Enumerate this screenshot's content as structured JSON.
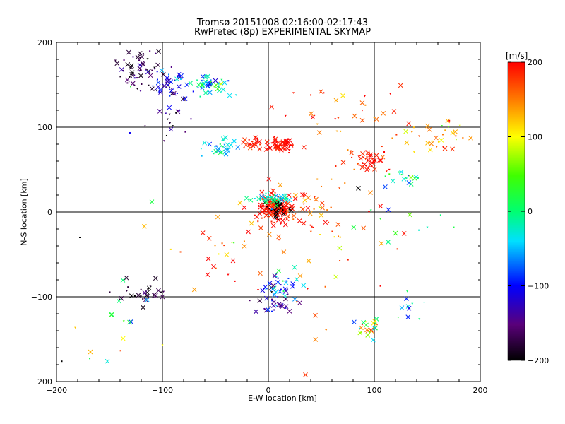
{
  "chart_data": {
    "type": "scatter",
    "title": "Tromsø 20151008 02:16:00-02:17:43",
    "subtitle": "RwPretec (8p) EXPERIMENTAL SKYMAP",
    "xlabel": "E-W location [km]",
    "ylabel": "N-S location [km]",
    "xlim": [
      -200,
      200
    ],
    "ylim": [
      -200,
      200
    ],
    "xticks": [
      -200,
      -100,
      0,
      100,
      200
    ],
    "yticks": [
      -200,
      -100,
      0,
      100,
      200
    ],
    "grid": true,
    "colorbar": {
      "unit": "[m/s]",
      "range": [
        -200,
        200
      ],
      "ticks": [
        200,
        100,
        0,
        -100,
        -200
      ],
      "colormap": "black-purple-blue-cyan-green-yellow-red"
    },
    "clusters": [
      {
        "x": -120,
        "y": 170,
        "spread_x": 18,
        "spread_y": 22,
        "velocity": -170,
        "vel_spread": 40,
        "n": 55
      },
      {
        "x": -95,
        "y": 150,
        "spread_x": 14,
        "spread_y": 12,
        "velocity": -120,
        "vel_spread": 60,
        "n": 40
      },
      {
        "x": -55,
        "y": 150,
        "spread_x": 15,
        "spread_y": 10,
        "velocity": -30,
        "vel_spread": 60,
        "n": 55
      },
      {
        "x": -90,
        "y": 110,
        "spread_x": 20,
        "spread_y": 18,
        "velocity": -150,
        "vel_spread": 50,
        "n": 20
      },
      {
        "x": -45,
        "y": 75,
        "spread_x": 15,
        "spread_y": 8,
        "velocity": -40,
        "vel_spread": 50,
        "n": 35
      },
      {
        "x": 10,
        "y": 78,
        "spread_x": 12,
        "spread_y": 7,
        "velocity": 195,
        "vel_spread": 15,
        "n": 60
      },
      {
        "x": -15,
        "y": 82,
        "spread_x": 8,
        "spread_y": 5,
        "velocity": 190,
        "vel_spread": 20,
        "n": 25
      },
      {
        "x": 5,
        "y": 5,
        "spread_x": 14,
        "spread_y": 12,
        "velocity": 195,
        "vel_spread": 15,
        "n": 160
      },
      {
        "x": 10,
        "y": 5,
        "spread_x": 10,
        "spread_y": 8,
        "velocity": -200,
        "vel_spread": 5,
        "n": 30
      },
      {
        "x": 5,
        "y": 15,
        "spread_x": 18,
        "spread_y": 6,
        "velocity": -20,
        "vel_spread": 40,
        "n": 40
      },
      {
        "x": 35,
        "y": 0,
        "spread_x": 25,
        "spread_y": 30,
        "velocity": 170,
        "vel_spread": 50,
        "n": 45
      },
      {
        "x": 95,
        "y": 60,
        "spread_x": 20,
        "spread_y": 12,
        "velocity": 190,
        "vel_spread": 25,
        "n": 45
      },
      {
        "x": 130,
        "y": 40,
        "spread_x": 15,
        "spread_y": 8,
        "velocity": -20,
        "vel_spread": 60,
        "n": 18
      },
      {
        "x": 160,
        "y": 90,
        "spread_x": 30,
        "spread_y": 20,
        "velocity": 140,
        "vel_spread": 80,
        "n": 35
      },
      {
        "x": 70,
        "y": 120,
        "spread_x": 50,
        "spread_y": 30,
        "velocity": 160,
        "vel_spread": 60,
        "n": 30
      },
      {
        "x": -120,
        "y": -95,
        "spread_x": 20,
        "spread_y": 12,
        "velocity": -180,
        "vel_spread": 30,
        "n": 30
      },
      {
        "x": 10,
        "y": -90,
        "spread_x": 15,
        "spread_y": 18,
        "velocity": -80,
        "vel_spread": 90,
        "n": 45
      },
      {
        "x": 5,
        "y": -110,
        "spread_x": 12,
        "spread_y": 8,
        "velocity": -130,
        "vel_spread": 40,
        "n": 20
      },
      {
        "x": 95,
        "y": -135,
        "spread_x": 12,
        "spread_y": 10,
        "velocity": 60,
        "vel_spread": 140,
        "n": 25
      },
      {
        "x": 130,
        "y": -110,
        "spread_x": 15,
        "spread_y": 15,
        "velocity": -60,
        "vel_spread": 80,
        "n": 10
      },
      {
        "x": -40,
        "y": -40,
        "spread_x": 60,
        "spread_y": 50,
        "velocity": 150,
        "vel_spread": 80,
        "n": 35
      },
      {
        "x": -150,
        "y": -130,
        "spread_x": 30,
        "spread_y": 40,
        "velocity": 20,
        "vel_spread": 120,
        "n": 12
      },
      {
        "x": 60,
        "y": -50,
        "spread_x": 60,
        "spread_y": 70,
        "velocity": 160,
        "vel_spread": 60,
        "n": 25
      },
      {
        "x": 120,
        "y": -10,
        "spread_x": 50,
        "spread_y": 20,
        "velocity": 0,
        "vel_spread": 60,
        "n": 8
      }
    ],
    "isolated_points": [
      {
        "x": -178,
        "y": -30,
        "v": -200
      },
      {
        "x": -195,
        "y": -176,
        "v": -200
      },
      {
        "x": -168,
        "y": -165,
        "v": 130
      },
      {
        "x": -152,
        "y": -176,
        "v": -30
      },
      {
        "x": -100,
        "y": -157,
        "v": 100
      },
      {
        "x": -131,
        "y": -130,
        "v": 20
      },
      {
        "x": -110,
        "y": 12,
        "v": 20
      },
      {
        "x": -130,
        "y": 148,
        "v": 30
      },
      {
        "x": 95,
        "y": 0,
        "v": 200
      },
      {
        "x": 150,
        "y": -18,
        "v": -20
      },
      {
        "x": 175,
        "y": -18,
        "v": 20
      },
      {
        "x": 35,
        "y": -192,
        "v": 180
      },
      {
        "x": 85,
        "y": 28,
        "v": -200
      },
      {
        "x": 120,
        "y": -25,
        "v": 40
      }
    ]
  }
}
